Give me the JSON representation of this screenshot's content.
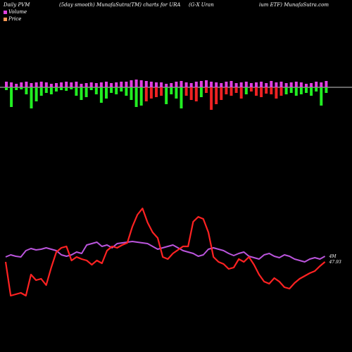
{
  "header": {
    "left": "Daily PVM",
    "seg1": "(5day smooth) MunafaSutra(TM) charts for URA",
    "seg2": "(G-X  Uran",
    "seg3": "ium ETF) MunafaSutra.com"
  },
  "legend": [
    {
      "label": "Volume",
      "color": "#e040e0"
    },
    {
      "label": "Price",
      "color": "#ff9955"
    }
  ],
  "colors": {
    "background": "#000000",
    "magenta": "#e040e0",
    "green": "#22ee22",
    "red": "#ee2222",
    "price_line": "#ff2222",
    "pvm_line": "#bb55dd",
    "baseline": "#cccccc"
  },
  "chart_data": {
    "type": "bar+line",
    "title": "Daily PVM (5day smooth) MunafaSutra(TM) charts for URA (G-X Uranium ETF) MunafaSutra.com",
    "volume_panel": {
      "up": [
        8,
        7,
        5,
        7,
        8,
        6,
        7,
        8,
        7,
        5,
        6,
        7,
        8,
        7,
        8,
        5,
        6,
        7,
        6,
        7,
        8,
        6,
        7,
        8,
        8,
        10,
        11,
        10,
        9,
        8,
        7,
        7,
        5,
        6,
        8,
        9,
        7,
        6,
        8,
        9,
        10,
        8,
        7,
        6,
        8,
        9,
        6,
        7,
        8,
        6,
        7,
        8,
        6,
        9,
        7,
        8,
        6,
        7,
        8,
        7,
        5,
        6,
        8,
        7,
        9
      ],
      "down": [
        4,
        28,
        4,
        3,
        10,
        30,
        20,
        12,
        8,
        10,
        6,
        4,
        5,
        3,
        12,
        18,
        14,
        4,
        10,
        22,
        16,
        8,
        10,
        6,
        12,
        18,
        28,
        26,
        20,
        16,
        14,
        12,
        24,
        10,
        16,
        30,
        12,
        18,
        20,
        14,
        8,
        32,
        24,
        18,
        10,
        12,
        8,
        16,
        10,
        6,
        12,
        14,
        9,
        10,
        16,
        12,
        10,
        8,
        12,
        10,
        8,
        12,
        6,
        26,
        8
      ],
      "down_color": [
        "green",
        "green",
        "green",
        "green",
        "green",
        "green",
        "green",
        "green",
        "green",
        "green",
        "green",
        "green",
        "green",
        "green",
        "green",
        "green",
        "green",
        "green",
        "green",
        "green",
        "green",
        "green",
        "green",
        "green",
        "green",
        "green",
        "green",
        "green",
        "red",
        "red",
        "red",
        "red",
        "green",
        "green",
        "green",
        "green",
        "red",
        "red",
        "red",
        "green",
        "red",
        "red",
        "red",
        "red",
        "red",
        "red",
        "red",
        "red",
        "green",
        "red",
        "red",
        "red",
        "red",
        "red",
        "red",
        "red",
        "green",
        "green",
        "green",
        "green",
        "green",
        "green",
        "green",
        "green",
        "green"
      ]
    },
    "price": [
      372,
      420,
      418,
      416,
      420,
      390,
      398,
      396,
      405,
      380,
      358,
      352,
      350,
      370,
      365,
      368,
      370,
      376,
      370,
      374,
      356,
      350,
      352,
      348,
      345,
      322,
      305,
      296,
      316,
      330,
      338,
      365,
      368,
      360,
      355,
      350,
      350,
      315,
      308,
      311,
      330,
      365,
      372,
      375,
      382,
      380,
      368,
      372,
      365,
      376,
      390,
      400,
      403,
      395,
      400,
      408,
      410,
      402,
      396,
      392,
      388,
      385,
      378,
      372
    ],
    "pvm": [
      365,
      362,
      364,
      365,
      356,
      353,
      355,
      354,
      352,
      354,
      356,
      362,
      364,
      362,
      358,
      360,
      348,
      346,
      344,
      350,
      348,
      352,
      346,
      345,
      344,
      343,
      344,
      345,
      346,
      350,
      354,
      352,
      350,
      348,
      352,
      356,
      358,
      360,
      364,
      362,
      354,
      352,
      354,
      356,
      360,
      363,
      360,
      358,
      364,
      366,
      368,
      362,
      360,
      364,
      366,
      362,
      364,
      368,
      370,
      372,
      368,
      366,
      368,
      364
    ],
    "series": [
      {
        "name": "Volume",
        "color": "#e040e0"
      },
      {
        "name": "Price",
        "color": "#ff9955"
      }
    ],
    "price_end_label": "47.93",
    "pvm_end_label": "4M",
    "grid": false
  }
}
